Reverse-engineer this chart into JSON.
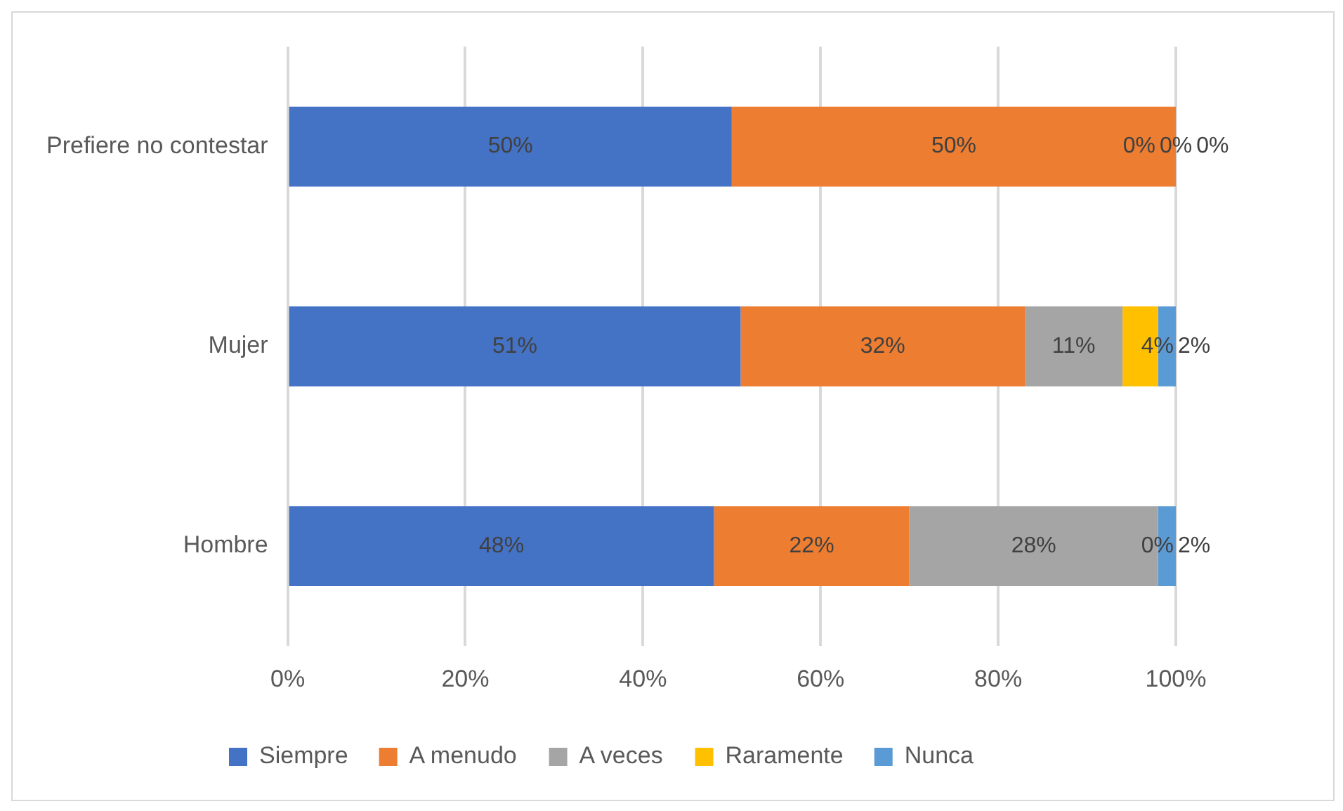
{
  "chart_data": {
    "type": "bar",
    "orientation": "horizontal",
    "stacked": true,
    "categories": [
      "Prefiere no contestar",
      "Mujer",
      "Hombre"
    ],
    "series": [
      {
        "name": "Siempre",
        "color": "#4472c4",
        "values": [
          50,
          51,
          48
        ],
        "value_labels": [
          "50%",
          "51%",
          "48%"
        ]
      },
      {
        "name": "A menudo",
        "color": "#ed7d31",
        "values": [
          50,
          32,
          22
        ],
        "value_labels": [
          "50%",
          "32%",
          "22%"
        ]
      },
      {
        "name": "A veces",
        "color": "#a5a5a5",
        "values": [
          0,
          11,
          28
        ],
        "value_labels": [
          "0%",
          "11%",
          "28%"
        ]
      },
      {
        "name": "Raramente",
        "color": "#ffc000",
        "values": [
          0,
          4,
          0
        ],
        "value_labels": [
          "0%",
          "4%",
          "0%"
        ]
      },
      {
        "name": "Nunca",
        "color": "#5b9bd5",
        "values": [
          0,
          2,
          2
        ],
        "value_labels": [
          "0%",
          "2%",
          "2%"
        ]
      }
    ],
    "xlim": [
      0,
      100
    ],
    "xticks": [
      {
        "value": 0,
        "label": "0%"
      },
      {
        "value": 20,
        "label": "20%"
      },
      {
        "value": 40,
        "label": "40%"
      },
      {
        "value": 60,
        "label": "60%"
      },
      {
        "value": 80,
        "label": "80%"
      },
      {
        "value": 100,
        "label": "100%"
      }
    ],
    "grid": "x",
    "legend": "bottom"
  }
}
